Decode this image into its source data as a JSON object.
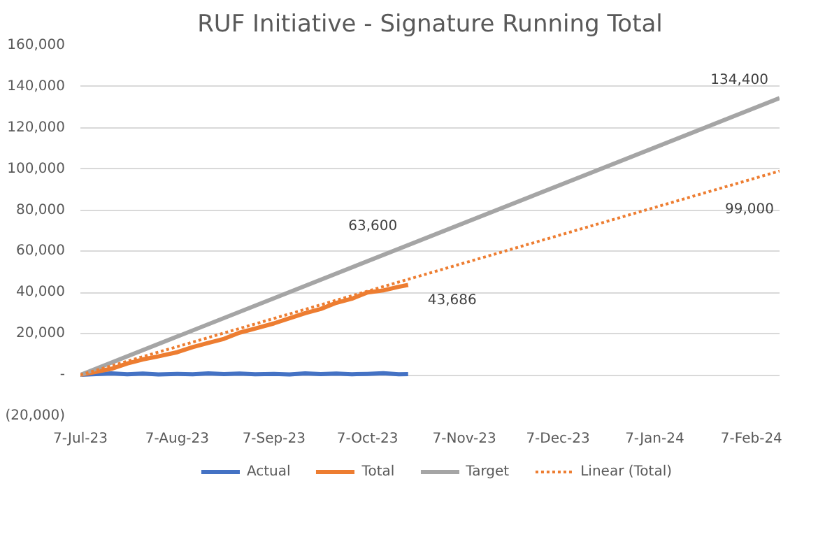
{
  "chart_data": {
    "type": "line",
    "title": "RUF Initiative - Signature Running Total",
    "xlim": [
      "2023-07-07",
      "2024-02-16"
    ],
    "ylim": [
      -20000,
      160000
    ],
    "xticks": [
      {
        "value": "2023-07-07",
        "label": "7-Jul-23"
      },
      {
        "value": "2023-08-07",
        "label": "7-Aug-23"
      },
      {
        "value": "2023-09-07",
        "label": "7-Sep-23"
      },
      {
        "value": "2023-10-07",
        "label": "7-Oct-23"
      },
      {
        "value": "2023-11-07",
        "label": "7-Nov-23"
      },
      {
        "value": "2023-12-07",
        "label": "7-Dec-23"
      },
      {
        "value": "2024-01-07",
        "label": "7-Jan-24"
      },
      {
        "value": "2024-02-07",
        "label": "7-Feb-24"
      }
    ],
    "yticks": [
      {
        "value": -20000,
        "label": "(20,000)"
      },
      {
        "value": 0,
        "label": "-"
      },
      {
        "value": 20000,
        "label": "20,000"
      },
      {
        "value": 40000,
        "label": "40,000"
      },
      {
        "value": 60000,
        "label": "60,000"
      },
      {
        "value": 80000,
        "label": "80,000"
      },
      {
        "value": 100000,
        "label": "100,000"
      },
      {
        "value": 120000,
        "label": "120,000"
      },
      {
        "value": 140000,
        "label": "140,000"
      },
      {
        "value": 160000,
        "label": "160,000"
      }
    ],
    "grid": "y",
    "legend": "bottom",
    "series": [
      {
        "name": "Actual",
        "color": "#4472c4",
        "x": [
          "2023-07-07",
          "2023-07-12",
          "2023-07-17",
          "2023-07-22",
          "2023-07-27",
          "2023-08-01",
          "2023-08-07",
          "2023-08-12",
          "2023-08-17",
          "2023-08-22",
          "2023-08-27",
          "2023-09-01",
          "2023-09-07",
          "2023-09-12",
          "2023-09-17",
          "2023-09-22",
          "2023-09-27",
          "2023-10-02",
          "2023-10-07",
          "2023-10-12",
          "2023-10-17",
          "2023-10-20"
        ],
        "values": [
          0,
          400,
          700,
          300,
          600,
          200,
          500,
          300,
          700,
          400,
          600,
          300,
          500,
          200,
          700,
          400,
          600,
          300,
          500,
          800,
          300,
          400
        ]
      },
      {
        "name": "Total",
        "color": "#ed7d31",
        "x": [
          "2023-07-07",
          "2023-07-12",
          "2023-07-17",
          "2023-07-22",
          "2023-07-27",
          "2023-08-01",
          "2023-08-07",
          "2023-08-12",
          "2023-08-17",
          "2023-08-22",
          "2023-08-27",
          "2023-09-01",
          "2023-09-07",
          "2023-09-12",
          "2023-09-17",
          "2023-09-22",
          "2023-09-27",
          "2023-10-02",
          "2023-10-07",
          "2023-10-12",
          "2023-10-17",
          "2023-10-20"
        ],
        "values": [
          0,
          1500,
          3000,
          5500,
          7500,
          9000,
          11000,
          13500,
          15500,
          17500,
          20500,
          22500,
          25000,
          27500,
          30000,
          32000,
          35000,
          37000,
          40000,
          41000,
          42800,
          43686
        ]
      },
      {
        "name": "Target",
        "color": "#a5a5a5",
        "x": [
          "2023-07-07",
          "2024-02-16"
        ],
        "values": [
          0,
          134400
        ]
      },
      {
        "name": "Linear (Total)",
        "color": "#ed7d31",
        "line_style": "dotted",
        "x": [
          "2023-07-07",
          "2024-02-16"
        ],
        "values": [
          0,
          99000
        ]
      }
    ],
    "annotations": [
      {
        "text": "134,400",
        "x": "2024-02-16",
        "y": 134400
      },
      {
        "text": "63,600",
        "x": "2023-10-21",
        "y": 63600
      },
      {
        "text": "43,686",
        "x": "2023-10-20",
        "y": 43686
      },
      {
        "text": "99,000",
        "x": "2024-02-16",
        "y": 99000
      }
    ]
  }
}
